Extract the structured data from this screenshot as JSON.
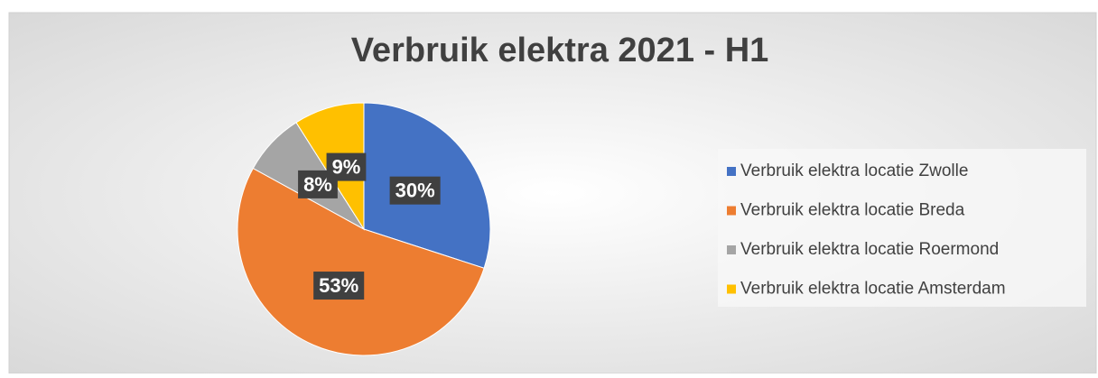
{
  "chart_data": {
    "type": "pie",
    "title": "Verbruik elektra 2021 - H1",
    "categories": [
      "Verbruik elektra locatie Zwolle",
      "Verbruik elektra locatie Breda",
      "Verbruik elektra locatie Roermond",
      "Verbruik elektra locatie Amsterdam"
    ],
    "values": [
      30,
      53,
      8,
      9
    ],
    "value_labels": [
      "30%",
      "53%",
      "8%",
      "9%"
    ],
    "colors": [
      "#4472c4",
      "#ed7d31",
      "#a5a5a5",
      "#ffc000"
    ],
    "legend": "right"
  }
}
